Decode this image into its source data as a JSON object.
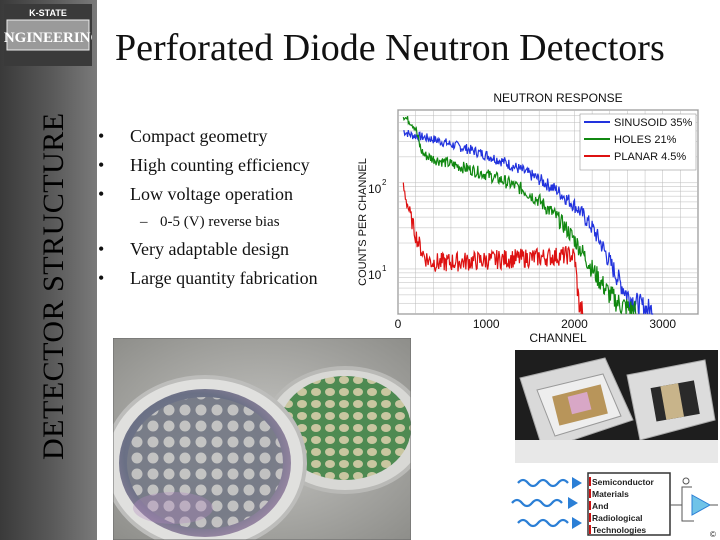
{
  "sidebar": {
    "logo_top": "K-STATE",
    "logo_main": "ENGINEERING",
    "vertical_title": "DETECTOR STRUCTURE"
  },
  "slide": {
    "title": "Perforated Diode Neutron Detectors",
    "bullets": [
      {
        "marker": "•",
        "text": "Compact geometry"
      },
      {
        "marker": "•",
        "text": "High counting efficiency"
      },
      {
        "marker": "•",
        "text": "Low voltage operation"
      },
      {
        "marker": "–",
        "text": "0-5 (V) reverse bias",
        "sub": true
      },
      {
        "marker": "•",
        "text": "Very adaptable design"
      },
      {
        "marker": "•",
        "text": "Large quantity fabrication"
      }
    ]
  },
  "chart_data": {
    "type": "line",
    "title": "NEUTRON RESPONSE",
    "xlabel": "CHANNEL",
    "ylabel": "COUNTS PER CHANNEL",
    "xlim": [
      0,
      3400
    ],
    "y_scale": "log",
    "ylim": [
      3,
      700
    ],
    "x_ticks": [
      "0",
      "1000",
      "2000",
      "3000"
    ],
    "y_ticks": [
      "10",
      "10"
    ],
    "y_tick_exponents": [
      "2",
      "1"
    ],
    "y_tick_values": [
      100,
      10
    ],
    "grid": true,
    "legend": "top-right",
    "series": [
      {
        "name": "SINUSOID 35%",
        "color": "#2233dd",
        "x": [
          60,
          100,
          150,
          200,
          280,
          400,
          600,
          800,
          1000,
          1200,
          1400,
          1600,
          1800,
          2000,
          2100,
          2200,
          2300,
          2400,
          2500,
          2600,
          2700,
          2800,
          2900
        ],
        "y": [
          400,
          380,
          360,
          350,
          340,
          320,
          280,
          245,
          210,
          175,
          140,
          110,
          82,
          55,
          42,
          30,
          20,
          12,
          7.5,
          5,
          4,
          3.5,
          3.2
        ]
      },
      {
        "name": "HOLES 21%",
        "color": "#118811",
        "x": [
          60,
          100,
          150,
          200,
          230,
          260,
          300,
          400,
          600,
          800,
          1000,
          1200,
          1400,
          1600,
          1800,
          1900,
          2000,
          2100,
          2200,
          2300,
          2400,
          2500,
          2600,
          2700
        ],
        "y": [
          600,
          550,
          500,
          430,
          320,
          240,
          210,
          190,
          165,
          145,
          125,
          105,
          85,
          62,
          40,
          30,
          22,
          15,
          10,
          7,
          5,
          4,
          3.5,
          3.2
        ]
      },
      {
        "name": "PLANAR 4.5%",
        "color": "#dd1111",
        "x": [
          60,
          100,
          150,
          200,
          250,
          300,
          350,
          400,
          500,
          600,
          800,
          1000,
          1200,
          1400,
          1600,
          1800,
          1950,
          2000,
          2020,
          2040,
          2060,
          2100
        ],
        "y": [
          90,
          60,
          38,
          25,
          18,
          14,
          12.5,
          12,
          11.8,
          12,
          12.3,
          12.6,
          13,
          13.3,
          13.6,
          14,
          14.5,
          14,
          9,
          5,
          3.5,
          3.1
        ]
      }
    ]
  },
  "photos": {
    "wafers": "wafers-photo",
    "packaged": "packaged-detectors-photo",
    "smart_logo": {
      "lines": [
        "Semiconductor",
        "Materials",
        "And",
        "Radiological",
        "Technologies"
      ],
      "copyright": "©"
    }
  },
  "colors": {
    "sidebar_dark": "#3a3a3a",
    "sidebar_light": "#7a7a7a",
    "sinusoid": "#2233dd",
    "holes": "#118811",
    "planar": "#dd1111"
  }
}
